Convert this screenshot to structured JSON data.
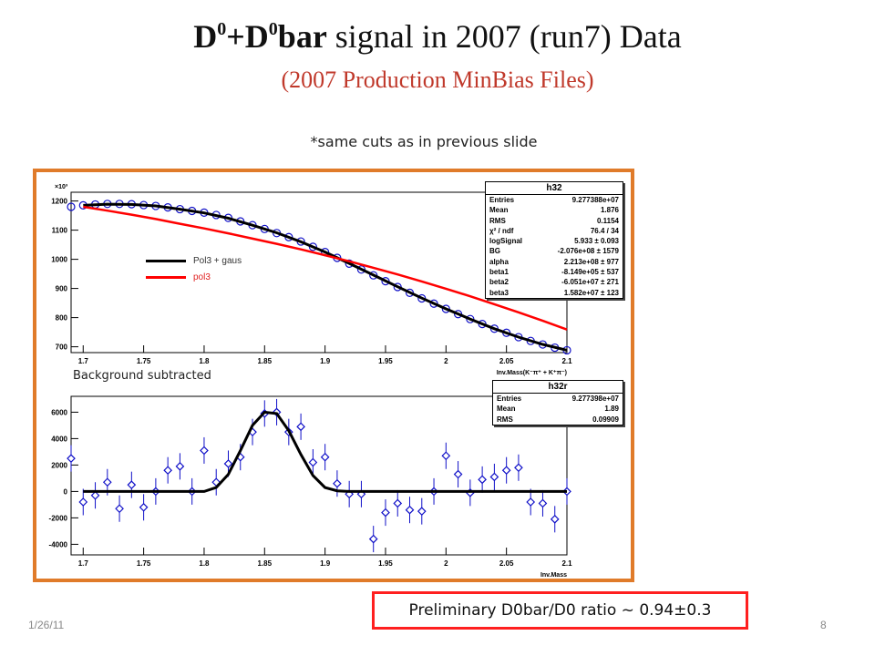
{
  "slide": {
    "title_d0": "D",
    "title_sup1": "0",
    "title_plus": "+D",
    "title_sup2": "0",
    "title_bar": "bar",
    "title_rest": " signal in 2007 (run7) Data",
    "subtitle": "(2007 Production MinBias Files)",
    "note": "*same cuts as in previous slide",
    "date": "1/26/11",
    "page": "8",
    "ratio_text": "Preliminary D0bar/D0 ratio ~ 0.94±0.3",
    "bg_label": "Background subtracted",
    "colors": {
      "frame": "#e07b2a",
      "title_red": "#c0392b",
      "ratio_border": "#ff1f1f",
      "data": "#1010c8",
      "fit_total": "#000000",
      "fit_bg": "#ff0000"
    }
  },
  "legend": {
    "total_label": "Pol3 + gaus",
    "bg_label": "pol3"
  },
  "statbox_top": {
    "name": "h32",
    "rows": [
      {
        "k": "Entries",
        "v": "9.277388e+07"
      },
      {
        "k": "Mean",
        "v": "1.876"
      },
      {
        "k": "RMS",
        "v": "0.1154"
      },
      {
        "k": "χ² / ndf",
        "v": "76.4 / 34"
      },
      {
        "k": "logSignal",
        "v": "5.933 ± 0.093"
      },
      {
        "k": "BG",
        "v": "-2.076e+08 ± 1579"
      },
      {
        "k": "alpha",
        "v": "2.213e+08 ± 977"
      },
      {
        "k": "beta1",
        "v": "-8.149e+05 ± 537"
      },
      {
        "k": "beta2",
        "v": "-6.051e+07 ± 271"
      },
      {
        "k": "beta3",
        "v": "1.582e+07 ± 123"
      }
    ]
  },
  "statbox_bottom": {
    "name": "h32r",
    "rows": [
      {
        "k": "Entries",
        "v": "9.277398e+07"
      },
      {
        "k": "Mean",
        "v": "1.89"
      },
      {
        "k": "RMS",
        "v": "0.09909"
      }
    ]
  },
  "chart_data": [
    {
      "type": "scatter",
      "title": "",
      "xlabel": "Inv.Mass(K⁻π⁺ + K⁺π⁻)",
      "ylabel": "",
      "y_multiplier_label": "×10³",
      "xlim": [
        1.69,
        2.1
      ],
      "ylim": [
        680,
        1230
      ],
      "xticks": [
        1.7,
        1.75,
        1.8,
        1.85,
        1.9,
        1.95,
        2,
        2.05,
        2.1
      ],
      "xtick_labels": [
        "1.7",
        "1.75",
        "1.8",
        "1.85",
        "1.9",
        "1.95",
        "2",
        "2.05",
        "2.1"
      ],
      "yticks": [
        700,
        800,
        900,
        1000,
        1100,
        1200
      ],
      "ytick_labels": [
        "700",
        "800",
        "900",
        "1000",
        "1100",
        "1200"
      ],
      "series": [
        {
          "name": "data",
          "x": [
            1.69,
            1.7,
            1.71,
            1.72,
            1.73,
            1.74,
            1.75,
            1.76,
            1.77,
            1.78,
            1.79,
            1.8,
            1.81,
            1.82,
            1.83,
            1.84,
            1.85,
            1.86,
            1.87,
            1.88,
            1.89,
            1.9,
            1.91,
            1.92,
            1.93,
            1.94,
            1.95,
            1.96,
            1.97,
            1.98,
            1.99,
            2.0,
            2.01,
            2.02,
            2.03,
            2.04,
            2.05,
            2.06,
            2.07,
            2.08,
            2.09,
            2.1
          ],
          "y": [
            1180,
            1185,
            1188,
            1190,
            1190,
            1189,
            1186,
            1183,
            1178,
            1172,
            1166,
            1160,
            1152,
            1142,
            1130,
            1117,
            1104,
            1090,
            1076,
            1061,
            1043,
            1025,
            1005,
            985,
            965,
            945,
            925,
            905,
            885,
            866,
            848,
            830,
            812,
            795,
            778,
            762,
            748,
            733,
            720,
            708,
            697,
            688
          ]
        },
        {
          "name": "Pol3 + gaus",
          "x": [
            1.7,
            1.72,
            1.74,
            1.76,
            1.78,
            1.8,
            1.82,
            1.84,
            1.86,
            1.88,
            1.9,
            1.92,
            1.94,
            1.96,
            1.98,
            2.0,
            2.02,
            2.04,
            2.06,
            2.08,
            2.1
          ],
          "y": [
            1185,
            1189,
            1188,
            1183,
            1172,
            1159,
            1141,
            1117,
            1091,
            1060,
            1025,
            986,
            946,
            906,
            867,
            830,
            795,
            762,
            733,
            708,
            688
          ]
        },
        {
          "name": "pol3",
          "x": [
            1.7,
            1.72,
            1.74,
            1.76,
            1.78,
            1.8,
            1.82,
            1.84,
            1.86,
            1.88,
            1.9,
            1.92,
            1.94,
            1.96,
            1.98,
            2.0,
            2.02,
            2.04,
            2.06,
            2.08,
            2.1
          ],
          "y": [
            1180,
            1167,
            1153,
            1138,
            1122,
            1106,
            1089,
            1071,
            1053,
            1034,
            1014,
            993,
            971,
            948,
            924,
            899,
            873,
            846,
            818,
            789,
            759
          ]
        }
      ]
    },
    {
      "type": "scatter",
      "title": "Background subtracted",
      "xlabel": "Inv.Mass",
      "ylabel": "",
      "xlim": [
        1.69,
        2.1
      ],
      "ylim": [
        -4800,
        7200
      ],
      "xticks": [
        1.7,
        1.75,
        1.8,
        1.85,
        1.9,
        1.95,
        2,
        2.05,
        2.1
      ],
      "xtick_labels": [
        "1.7",
        "1.75",
        "1.8",
        "1.85",
        "1.9",
        "1.95",
        "2",
        "2.05",
        "2.1"
      ],
      "yticks": [
        -4000,
        -2000,
        0,
        2000,
        4000,
        6000
      ],
      "ytick_labels": [
        "-4000",
        "-2000",
        "0",
        "2000",
        "4000",
        "6000"
      ],
      "series": [
        {
          "name": "data",
          "x": [
            1.69,
            1.7,
            1.71,
            1.72,
            1.73,
            1.74,
            1.75,
            1.76,
            1.77,
            1.78,
            1.79,
            1.8,
            1.81,
            1.82,
            1.83,
            1.84,
            1.85,
            1.86,
            1.87,
            1.88,
            1.89,
            1.9,
            1.91,
            1.92,
            1.93,
            1.94,
            1.95,
            1.96,
            1.97,
            1.98,
            1.99,
            2.0,
            2.01,
            2.02,
            2.03,
            2.04,
            2.05,
            2.06,
            2.07,
            2.08,
            2.09,
            2.1
          ],
          "y": [
            2500,
            -800,
            -300,
            700,
            -1300,
            500,
            -1200,
            0,
            1600,
            1900,
            0,
            3100,
            700,
            2100,
            2600,
            4500,
            5900,
            6000,
            4500,
            4900,
            2200,
            2600,
            600,
            -200,
            -200,
            -3600,
            -1600,
            -900,
            -1400,
            -1500,
            0,
            2700,
            1300,
            -100,
            900,
            1100,
            1600,
            1800,
            -800,
            -900,
            -2100,
            0
          ],
          "err": [
            1000,
            1000,
            1000,
            1000,
            1000,
            1000,
            1000,
            1000,
            1000,
            1000,
            1000,
            1000,
            1000,
            1000,
            1000,
            1000,
            1000,
            1000,
            1000,
            1000,
            1000,
            1000,
            1000,
            1000,
            1000,
            1000,
            1000,
            1000,
            1000,
            1000,
            1000,
            1000,
            1000,
            1000,
            1000,
            1000,
            1000,
            1000,
            1000,
            1000,
            1000,
            1000
          ]
        },
        {
          "name": "gaus",
          "x": [
            1.7,
            1.8,
            1.81,
            1.82,
            1.83,
            1.84,
            1.85,
            1.86,
            1.87,
            1.88,
            1.89,
            1.9,
            1.91,
            1.92,
            1.93,
            1.94,
            2.0,
            2.1
          ],
          "y": [
            0,
            0,
            300,
            1300,
            3100,
            5000,
            6000,
            5900,
            4600,
            2800,
            1200,
            300,
            50,
            0,
            0,
            0,
            0,
            0
          ]
        }
      ]
    }
  ]
}
